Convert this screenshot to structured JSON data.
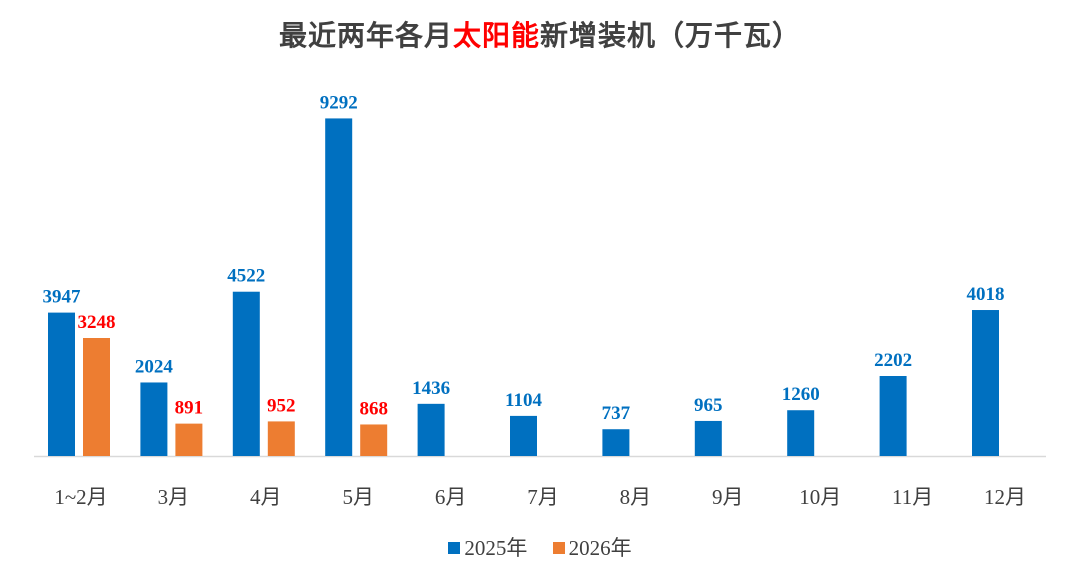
{
  "title": {
    "part1": "最近两年各月",
    "highlight": "太阳能",
    "part2": "新增装机（万千瓦）"
  },
  "colors": {
    "series_2025": "#0070c0",
    "series_2026": "#ed7d31",
    "label_2025": "#0070c0",
    "label_2026": "#ff0000",
    "highlight": "#ff0000",
    "axis": "#d9d9d9"
  },
  "chart_data": {
    "type": "bar",
    "title": "最近两年各月太阳能新增装机（万千瓦）",
    "categories": [
      "1~2月",
      "3月",
      "4月",
      "5月",
      "6月",
      "7月",
      "8月",
      "9月",
      "10月",
      "11月",
      "12月"
    ],
    "series": [
      {
        "name": "2025年",
        "values": [
          3947,
          2024,
          4522,
          9292,
          1436,
          1104,
          737,
          965,
          1260,
          2202,
          4018
        ]
      },
      {
        "name": "2026年",
        "values": [
          3248,
          891,
          952,
          868,
          null,
          null,
          null,
          null,
          null,
          null,
          null
        ]
      }
    ],
    "ylim": [
      0,
      10000
    ],
    "grid": false,
    "legend": "bottom"
  }
}
